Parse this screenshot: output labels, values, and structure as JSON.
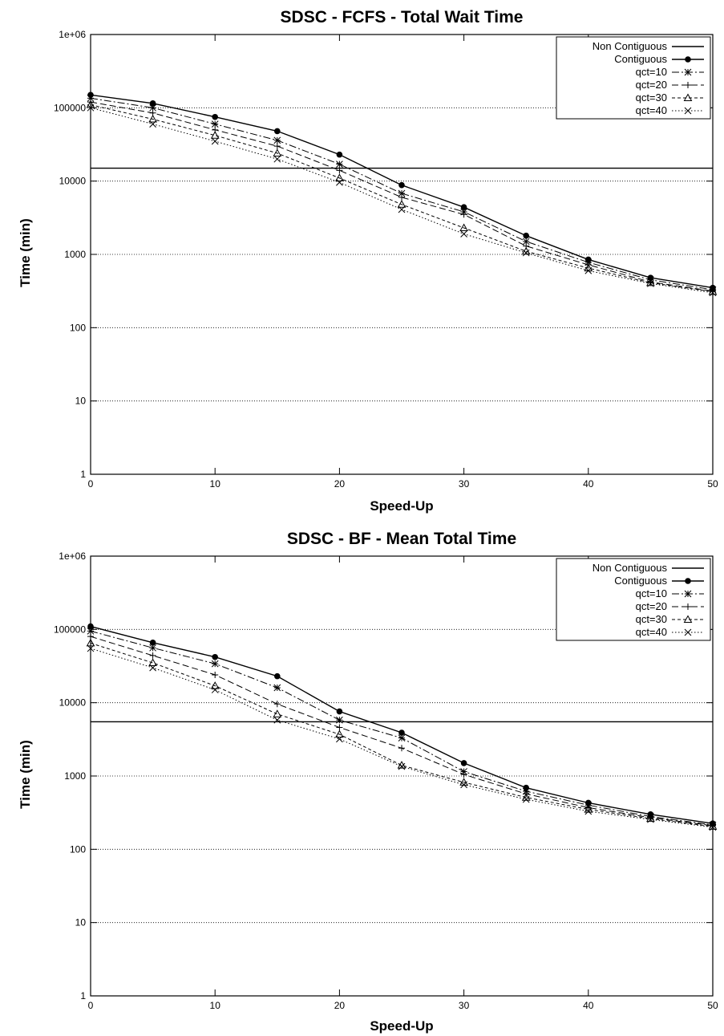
{
  "chart_data": [
    {
      "type": "line",
      "title": "SDSC - FCFS - Total Wait Time",
      "xlabel": "Speed-Up",
      "ylabel": "Time (min)",
      "xlim": [
        0,
        50
      ],
      "ylim": [
        1,
        1000000
      ],
      "yscale": "log",
      "xticks": [
        "0",
        "10",
        "20",
        "30",
        "40",
        "50"
      ],
      "yticks": [
        "1",
        "10",
        "100",
        "1000",
        "10000",
        "100000",
        "1e+06"
      ],
      "grid": "horizontal-dotted",
      "legend": "top-right",
      "x": [
        0,
        5,
        10,
        15,
        20,
        25,
        30,
        35,
        40,
        45,
        50
      ],
      "series": [
        {
          "name": "Non Contiguous",
          "style": "solid",
          "marker": "none",
          "values": [
            15000,
            15000,
            15000,
            15000,
            15000,
            15000,
            15000,
            15000,
            15000,
            15000,
            15000
          ]
        },
        {
          "name": "Contiguous",
          "style": "solid",
          "marker": "dot",
          "values": [
            150000,
            115000,
            75000,
            48000,
            23000,
            8800,
            4400,
            1800,
            850,
            480,
            350
          ]
        },
        {
          "name": "qct=10",
          "style": "dashdot",
          "marker": "star",
          "values": [
            135000,
            100000,
            60000,
            36000,
            17000,
            6800,
            3800,
            1500,
            780,
            450,
            330
          ]
        },
        {
          "name": "qct=20",
          "style": "dashed",
          "marker": "plus",
          "values": [
            120000,
            85000,
            50000,
            30000,
            14000,
            6000,
            3500,
            1300,
            720,
            420,
            315
          ]
        },
        {
          "name": "qct=30",
          "style": "shortdash",
          "marker": "triangle",
          "values": [
            110000,
            70000,
            42000,
            24000,
            11000,
            4800,
            2300,
            1100,
            650,
            410,
            310
          ]
        },
        {
          "name": "qct=40",
          "style": "dotted",
          "marker": "x",
          "values": [
            100000,
            60000,
            35000,
            20000,
            9600,
            4100,
            1900,
            1050,
            600,
            400,
            300
          ]
        }
      ]
    },
    {
      "type": "line",
      "title": "SDSC - BF - Mean Total Time",
      "xlabel": "Speed-Up",
      "ylabel": "Time (min)",
      "xlim": [
        0,
        50
      ],
      "ylim": [
        1,
        1000000
      ],
      "yscale": "log",
      "xticks": [
        "0",
        "10",
        "20",
        "30",
        "40",
        "50"
      ],
      "yticks": [
        "1",
        "10",
        "100",
        "1000",
        "10000",
        "100000",
        "1e+06"
      ],
      "grid": "horizontal-dotted",
      "legend": "top-right",
      "x": [
        0,
        5,
        10,
        15,
        20,
        25,
        30,
        35,
        40,
        45,
        50
      ],
      "series": [
        {
          "name": "Non Contiguous",
          "style": "solid",
          "marker": "none",
          "values": [
            5500,
            5500,
            5500,
            5500,
            5500,
            5500,
            5500,
            5500,
            5500,
            5500,
            5500
          ]
        },
        {
          "name": "Contiguous",
          "style": "solid",
          "marker": "dot",
          "values": [
            110000,
            66000,
            42000,
            23000,
            7600,
            3900,
            1500,
            690,
            430,
            300,
            225
          ]
        },
        {
          "name": "qct=10",
          "style": "dashdot",
          "marker": "star",
          "values": [
            95000,
            56000,
            34000,
            16000,
            5800,
            3300,
            1150,
            620,
            400,
            280,
            215
          ]
        },
        {
          "name": "qct=20",
          "style": "dashed",
          "marker": "plus",
          "values": [
            80000,
            44000,
            24000,
            9600,
            4600,
            2400,
            1050,
            570,
            370,
            270,
            210
          ]
        },
        {
          "name": "qct=30",
          "style": "shortdash",
          "marker": "triangle",
          "values": [
            65000,
            35000,
            17000,
            7000,
            3700,
            1400,
            820,
            510,
            350,
            262,
            205
          ]
        },
        {
          "name": "qct=40",
          "style": "dotted",
          "marker": "x",
          "values": [
            55000,
            30000,
            15000,
            5800,
            3200,
            1350,
            760,
            480,
            330,
            255,
            200
          ]
        }
      ]
    }
  ]
}
